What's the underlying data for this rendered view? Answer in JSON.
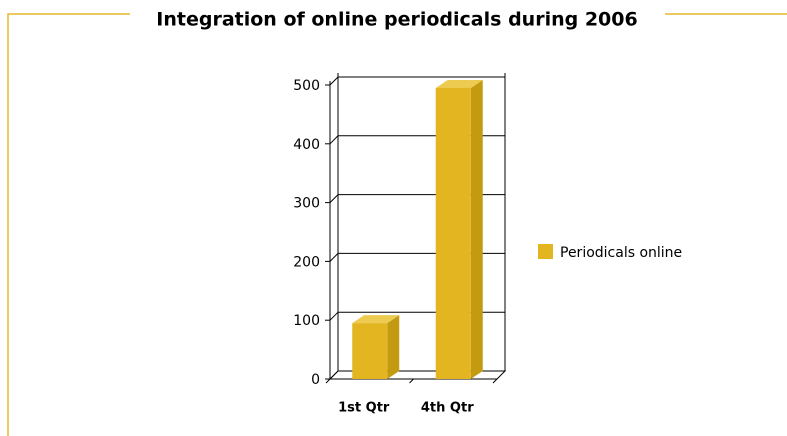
{
  "chart_data": {
    "type": "bar",
    "title": "Integration of online periodicals during 2006",
    "categories": [
      "1st Qtr",
      "4th Qtr"
    ],
    "series": [
      {
        "name": "Periodicals online",
        "color": "#e3b520",
        "values": [
          95,
          495
        ]
      }
    ],
    "ylim": [
      0,
      500
    ],
    "yticks": [
      0,
      100,
      200,
      300,
      400,
      500
    ],
    "grid": true
  }
}
